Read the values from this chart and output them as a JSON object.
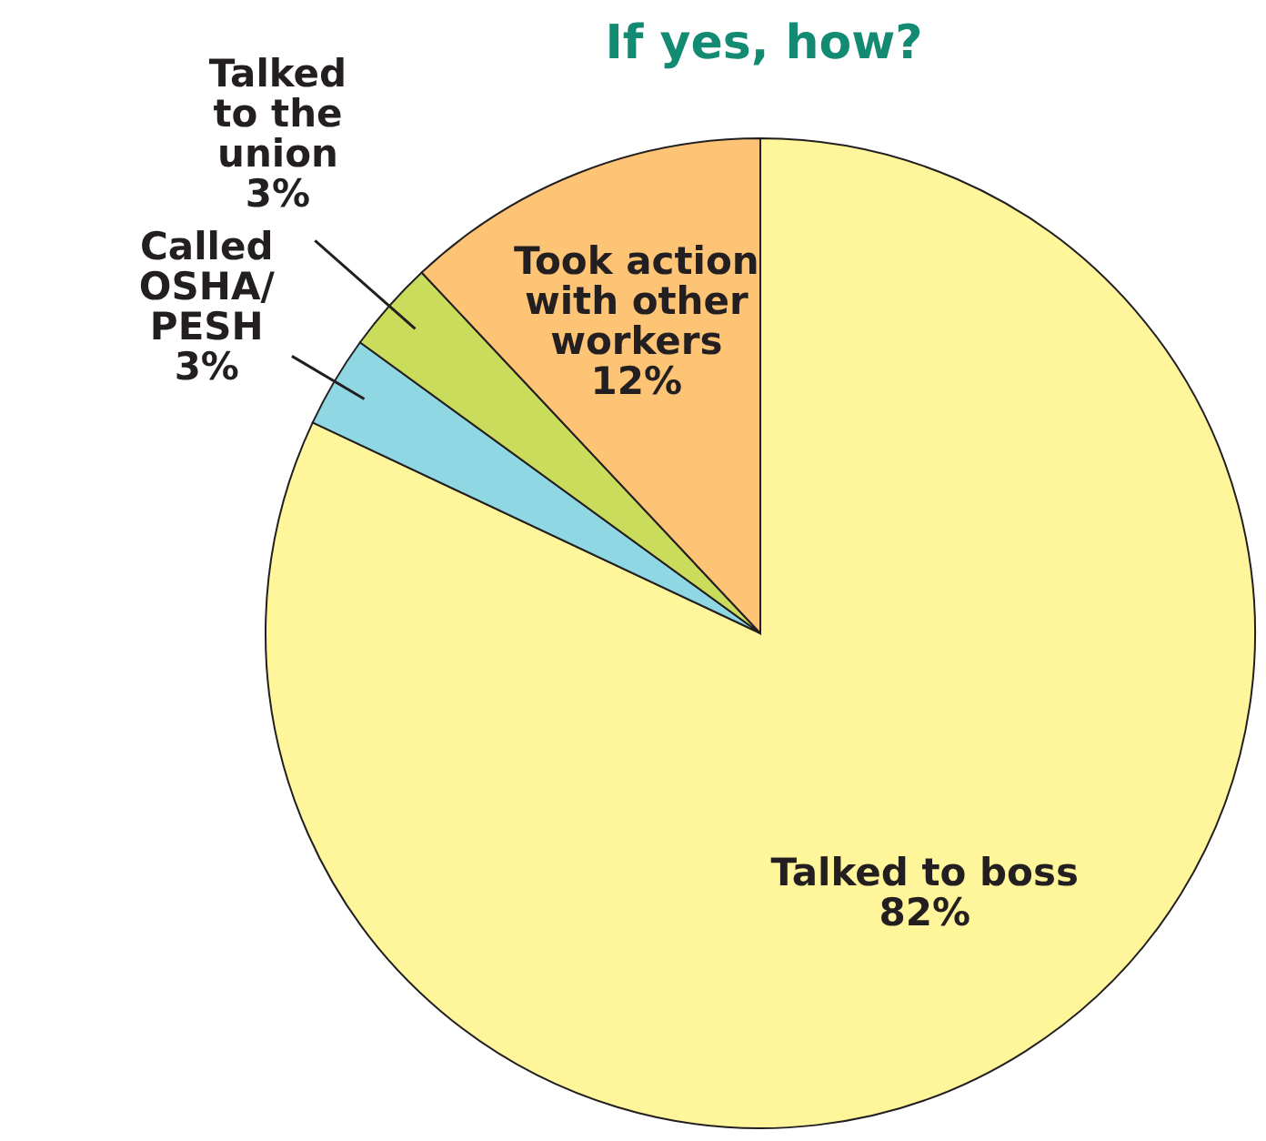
{
  "chart_data": {
    "type": "pie",
    "title": "If yes, how?",
    "categories": [
      "Talked to boss",
      "Called\nOSHA/\nPESH",
      "Talked\nto the\nunion",
      "Took action\nwith other\nworkers"
    ],
    "values": [
      82,
      3,
      3,
      12
    ],
    "colors": [
      "#fff59a",
      "#8fd8e3",
      "#c9dc5c",
      "#fcc474"
    ],
    "value_labels": [
      "82%",
      "3%",
      "3%",
      "12%"
    ]
  }
}
